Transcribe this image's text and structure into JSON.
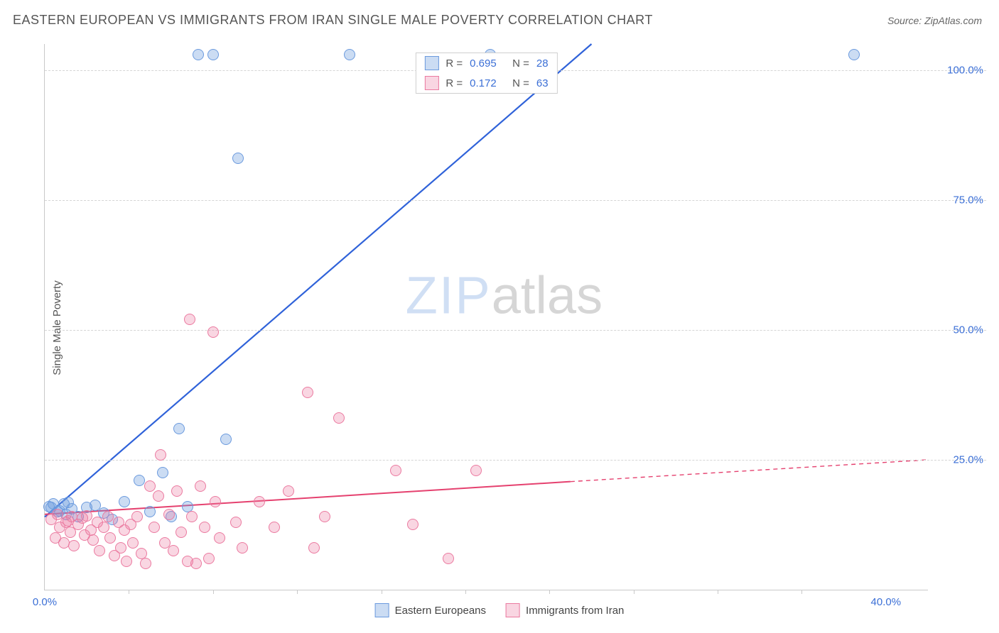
{
  "header": {
    "title": "EASTERN EUROPEAN VS IMMIGRANTS FROM IRAN SINGLE MALE POVERTY CORRELATION CHART",
    "source_label": "Source: ",
    "source_value": "ZipAtlas.com"
  },
  "watermark": {
    "part1": "ZIP",
    "part2": "atlas"
  },
  "chart": {
    "type": "scatter",
    "ylabel": "Single Male Poverty",
    "xlim": [
      0,
      42
    ],
    "ylim": [
      0,
      105
    ],
    "background_color": "#ffffff",
    "grid_color": "#d5d5d5",
    "axis_color": "#c9c9c9",
    "yticks": [
      {
        "v": 25,
        "label": "25.0%"
      },
      {
        "v": 50,
        "label": "50.0%"
      },
      {
        "v": 75,
        "label": "75.0%"
      },
      {
        "v": 100,
        "label": "100.0%"
      }
    ],
    "xticks": [
      {
        "v": 0,
        "label": "0.0%"
      },
      {
        "v": 40,
        "label": "40.0%"
      }
    ],
    "xtick_marks": [
      4,
      8,
      12,
      16,
      20,
      24,
      28,
      32,
      36
    ],
    "ytick_color": "#3b6fd6",
    "xtick_color": "#3b6fd6",
    "point_radius": 8,
    "series": [
      {
        "name": "Eastern Europeans",
        "fill": "rgba(107,154,222,0.35)",
        "stroke": "#6b9ade",
        "trend_color": "#2f62d9",
        "trend_width": 2.2,
        "trend": {
          "x1": 0,
          "y1": 14,
          "x2": 26,
          "y2": 105,
          "extrap_x2": 26,
          "extrap_y2": 105
        },
        "R": "0.695",
        "N": "28",
        "points": [
          {
            "x": 0.2,
            "y": 16
          },
          {
            "x": 0.6,
            "y": 15
          },
          {
            "x": 0.9,
            "y": 16.5
          },
          {
            "x": 1.0,
            "y": 14.5
          },
          {
            "x": 1.3,
            "y": 15.5
          },
          {
            "x": 1.6,
            "y": 14
          },
          {
            "x": 2.0,
            "y": 15.8
          },
          {
            "x": 2.4,
            "y": 16.2
          },
          {
            "x": 2.8,
            "y": 14.8
          },
          {
            "x": 3.2,
            "y": 13.5
          },
          {
            "x": 3.8,
            "y": 17
          },
          {
            "x": 4.5,
            "y": 21
          },
          {
            "x": 5.0,
            "y": 15
          },
          {
            "x": 5.6,
            "y": 22.5
          },
          {
            "x": 6.0,
            "y": 14
          },
          {
            "x": 6.4,
            "y": 31
          },
          {
            "x": 6.8,
            "y": 16
          },
          {
            "x": 7.3,
            "y": 103
          },
          {
            "x": 8.0,
            "y": 103
          },
          {
            "x": 8.6,
            "y": 29
          },
          {
            "x": 9.2,
            "y": 83
          },
          {
            "x": 14.5,
            "y": 103
          },
          {
            "x": 21.2,
            "y": 103
          },
          {
            "x": 38.5,
            "y": 103
          },
          {
            "x": 0.4,
            "y": 16.5
          },
          {
            "x": 1.1,
            "y": 16.8
          },
          {
            "x": 0.7,
            "y": 15.2
          },
          {
            "x": 0.3,
            "y": 15.8
          }
        ]
      },
      {
        "name": "Immigrants from Iran",
        "fill": "rgba(235,120,160,0.30)",
        "stroke": "#eb7aa0",
        "trend_color": "#e5416f",
        "trend_width": 2,
        "trend": {
          "x1": 0,
          "y1": 14.5,
          "x2": 25,
          "y2": 20.8,
          "extrap_x2": 42,
          "extrap_y2": 25
        },
        "R": "0.172",
        "N": "63",
        "points": [
          {
            "x": 0.3,
            "y": 13.5
          },
          {
            "x": 0.5,
            "y": 10
          },
          {
            "x": 0.7,
            "y": 12
          },
          {
            "x": 0.9,
            "y": 9
          },
          {
            "x": 1.0,
            "y": 13
          },
          {
            "x": 1.2,
            "y": 11
          },
          {
            "x": 1.3,
            "y": 14
          },
          {
            "x": 1.4,
            "y": 8.5
          },
          {
            "x": 1.6,
            "y": 12.5
          },
          {
            "x": 1.8,
            "y": 13.8
          },
          {
            "x": 1.9,
            "y": 10.5
          },
          {
            "x": 2.0,
            "y": 14.2
          },
          {
            "x": 2.2,
            "y": 11.5
          },
          {
            "x": 2.3,
            "y": 9.5
          },
          {
            "x": 2.5,
            "y": 13
          },
          {
            "x": 2.6,
            "y": 7.5
          },
          {
            "x": 2.8,
            "y": 12
          },
          {
            "x": 3.0,
            "y": 14
          },
          {
            "x": 3.1,
            "y": 10
          },
          {
            "x": 3.3,
            "y": 6.5
          },
          {
            "x": 3.5,
            "y": 13
          },
          {
            "x": 3.6,
            "y": 8
          },
          {
            "x": 3.8,
            "y": 11.5
          },
          {
            "x": 3.9,
            "y": 5.5
          },
          {
            "x": 4.1,
            "y": 12.5
          },
          {
            "x": 4.2,
            "y": 9
          },
          {
            "x": 4.4,
            "y": 14
          },
          {
            "x": 4.6,
            "y": 7
          },
          {
            "x": 4.8,
            "y": 5
          },
          {
            "x": 5.0,
            "y": 20
          },
          {
            "x": 5.2,
            "y": 12
          },
          {
            "x": 5.4,
            "y": 18
          },
          {
            "x": 5.5,
            "y": 26
          },
          {
            "x": 5.7,
            "y": 9
          },
          {
            "x": 5.9,
            "y": 14.5
          },
          {
            "x": 6.1,
            "y": 7.5
          },
          {
            "x": 6.3,
            "y": 19
          },
          {
            "x": 6.5,
            "y": 11
          },
          {
            "x": 6.8,
            "y": 5.5
          },
          {
            "x": 6.9,
            "y": 52
          },
          {
            "x": 7.0,
            "y": 14
          },
          {
            "x": 7.2,
            "y": 5
          },
          {
            "x": 7.4,
            "y": 20
          },
          {
            "x": 7.6,
            "y": 12
          },
          {
            "x": 7.8,
            "y": 6
          },
          {
            "x": 8.0,
            "y": 49.5
          },
          {
            "x": 8.1,
            "y": 17
          },
          {
            "x": 8.3,
            "y": 10
          },
          {
            "x": 9.1,
            "y": 13
          },
          {
            "x": 9.4,
            "y": 8
          },
          {
            "x": 10.2,
            "y": 17
          },
          {
            "x": 10.9,
            "y": 12
          },
          {
            "x": 11.6,
            "y": 19
          },
          {
            "x": 12.5,
            "y": 38
          },
          {
            "x": 12.8,
            "y": 8
          },
          {
            "x": 13.3,
            "y": 14
          },
          {
            "x": 14.0,
            "y": 33
          },
          {
            "x": 16.7,
            "y": 23
          },
          {
            "x": 17.5,
            "y": 12.5
          },
          {
            "x": 19.2,
            "y": 6
          },
          {
            "x": 20.5,
            "y": 23
          },
          {
            "x": 0.6,
            "y": 14.5
          },
          {
            "x": 1.1,
            "y": 13.2
          }
        ]
      }
    ],
    "legend_top": {
      "R_label": "R =",
      "N_label": "N =",
      "value_color": "#3b6fd6",
      "text_color": "#555"
    }
  }
}
